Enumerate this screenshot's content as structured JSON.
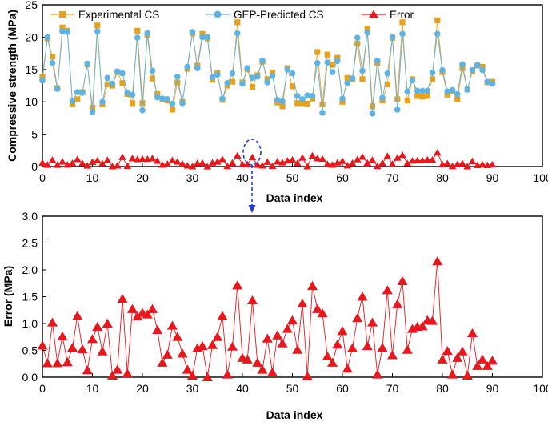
{
  "chart_data": [
    {
      "type": "line",
      "id": "top",
      "xlabel": "Data index",
      "ylabel": "Compressive strength (MPa)",
      "xlim": [
        0,
        100
      ],
      "ylim": [
        0,
        25
      ],
      "xticks": [
        0,
        10,
        20,
        30,
        40,
        50,
        60,
        70,
        80,
        90,
        100
      ],
      "yticks": [
        0,
        5,
        10,
        15,
        20,
        25
      ],
      "legend_position": "top",
      "series": [
        {
          "name": "Experimental CS",
          "color": "#E6A21E",
          "marker": "square",
          "values": [
            13.9,
            19.8,
            17.0,
            12.1,
            21.5,
            21.0,
            9.6,
            10.4,
            11.5,
            15.8,
            9.1,
            21.8,
            9.6,
            12.7,
            12.5,
            14.6,
            12.9,
            11.2,
            9.8,
            21.0,
            9.8,
            20.3,
            13.6,
            11.2,
            10.4,
            10.2,
            8.8,
            13.0,
            10.0,
            15.1,
            20.6,
            15.6,
            20.5,
            19.8,
            13.4,
            14.4,
            10.3,
            12.5,
            13.1,
            22.3,
            13.0,
            15.0,
            12.3,
            14.1,
            16.2,
            13.5,
            14.5,
            9.9,
            9.3,
            15.2,
            12.4,
            9.8,
            9.8,
            9.7,
            10.5,
            17.7,
            9.6,
            17.3,
            15.7,
            16.8,
            10.0,
            13.7,
            13.5,
            19.0,
            13.5,
            21.3,
            9.3,
            16.0,
            10.2,
            12.7,
            19.9,
            10.4,
            22.3,
            10.2,
            13.5,
            10.9,
            10.8,
            10.9,
            13.5,
            22.6,
            14.6,
            11.1,
            11.6,
            10.4,
            15.2,
            11.9,
            14.7,
            15.6,
            15.4,
            13.0,
            13.1
          ]
        },
        {
          "name": "GEP-Predicted CS",
          "color": "#5FB3E2",
          "marker": "circle",
          "values": [
            13.3,
            20.0,
            16.0,
            12.0,
            20.9,
            20.8,
            10.1,
            11.5,
            11.4,
            15.9,
            8.4,
            20.9,
            10.0,
            13.7,
            12.8,
            14.7,
            14.4,
            11.4,
            11.1,
            19.9,
            8.7,
            20.6,
            14.8,
            10.7,
            10.5,
            10.4,
            9.7,
            13.9,
            9.8,
            15.4,
            20.8,
            15.2,
            20.0,
            20.0,
            13.8,
            14.2,
            10.5,
            12.9,
            14.4,
            20.6,
            12.8,
            15.2,
            13.7,
            13.9,
            16.4,
            13.0,
            14.0,
            10.3,
            10.1,
            15.0,
            14.4,
            10.9,
            10.4,
            11.0,
            10.9,
            16.0,
            8.3,
            16.1,
            14.6,
            16.3,
            10.5,
            12.9,
            13.6,
            19.9,
            14.8,
            20.7,
            8.2,
            16.4,
            10.6,
            14.4,
            20.0,
            8.8,
            20.5,
            11.6,
            13.3,
            11.7,
            11.7,
            11.7,
            14.5,
            20.5,
            14.9,
            11.6,
            11.8,
            11.2,
            15.8,
            11.9,
            14.9,
            15.7,
            14.9,
            13.1,
            12.8
          ]
        },
        {
          "name": "Error",
          "color": "#E8171C",
          "marker": "triangle",
          "values": [
            0.59,
            0.26,
            1.02,
            0.26,
            0.76,
            0.28,
            0.55,
            1.14,
            0.52,
            0.13,
            0.71,
            0.94,
            0.48,
            1.0,
            0.03,
            0.14,
            1.46,
            0.07,
            1.27,
            1.13,
            1.2,
            1.17,
            1.27,
            0.88,
            0.27,
            0.42,
            0.96,
            0.75,
            0.44,
            0.14,
            0.03,
            0.54,
            0.58,
            0.0,
            0.6,
            0.75,
            1.14,
            0.05,
            0.57,
            1.71,
            0.36,
            0.33,
            1.43,
            0.27,
            0.14,
            0.72,
            0.09,
            0.78,
            0.63,
            0.9,
            1.06,
            0.51,
            1.37,
            0.02,
            1.7,
            1.27,
            1.19,
            0.39,
            0.27,
            0.61,
            0.86,
            0.16,
            0.54,
            1.1,
            1.5,
            0.58,
            1.02,
            0.05,
            0.55,
            1.62,
            0.41,
            1.36,
            1.79,
            0.51,
            0.9,
            0.94,
            0.95,
            1.06,
            1.05,
            2.16,
            0.33,
            0.49,
            0.05,
            0.36,
            0.48,
            0.03,
            0.82,
            0.21,
            0.33,
            0.21,
            0.31
          ]
        }
      ]
    },
    {
      "type": "line",
      "id": "bottom",
      "xlabel": "Data index",
      "ylabel": "Error (MPa)",
      "xlim": [
        0,
        100
      ],
      "ylim": [
        0,
        3.0
      ],
      "xticks": [
        0,
        10,
        20,
        30,
        40,
        50,
        60,
        70,
        80,
        90,
        100
      ],
      "yticks": [
        0.0,
        0.5,
        1.0,
        1.5,
        2.0,
        2.5,
        3.0
      ],
      "series": [
        {
          "name": "Error",
          "color": "#E8171C",
          "marker": "triangle",
          "values": [
            0.59,
            0.26,
            1.02,
            0.26,
            0.76,
            0.28,
            0.55,
            1.14,
            0.52,
            0.13,
            0.71,
            0.94,
            0.48,
            1.0,
            0.03,
            0.14,
            1.46,
            0.07,
            1.27,
            1.13,
            1.2,
            1.17,
            1.27,
            0.88,
            0.27,
            0.42,
            0.96,
            0.75,
            0.44,
            0.14,
            0.03,
            0.54,
            0.58,
            0.0,
            0.6,
            0.75,
            1.14,
            0.05,
            0.57,
            1.71,
            0.36,
            0.33,
            1.43,
            0.27,
            0.14,
            0.72,
            0.09,
            0.78,
            0.63,
            0.9,
            1.06,
            0.51,
            1.37,
            0.02,
            1.7,
            1.27,
            1.19,
            0.39,
            0.27,
            0.61,
            0.86,
            0.16,
            0.54,
            1.1,
            1.5,
            0.58,
            1.02,
            0.05,
            0.55,
            1.62,
            0.41,
            1.36,
            1.79,
            0.51,
            0.9,
            0.94,
            0.95,
            1.06,
            1.05,
            2.16,
            0.33,
            0.49,
            0.05,
            0.36,
            0.48,
            0.03,
            0.82,
            0.21,
            0.33,
            0.21,
            0.31
          ]
        }
      ]
    }
  ],
  "annotation": {
    "style": "dashed-ellipse-with-down-arrow",
    "color": "#1F3FD0",
    "center_data_x": 42,
    "chart": "top"
  }
}
